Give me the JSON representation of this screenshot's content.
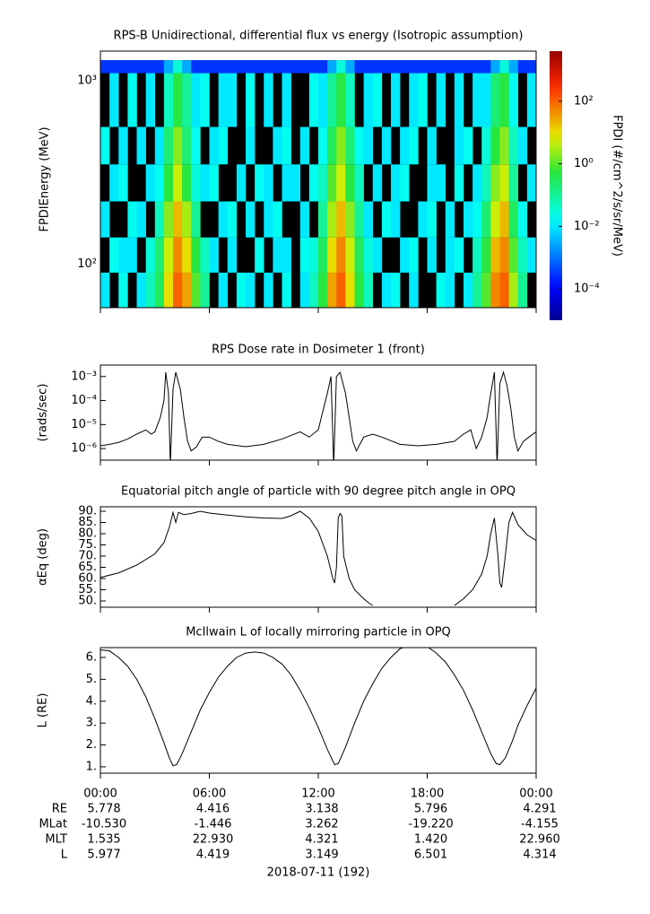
{
  "chart_data": [
    {
      "type": "heatmap",
      "title": "RPS-B  Unidirectional, differential flux vs energy (Isotropic assumption)",
      "ylabel": "FPDIEnergy (MeV)",
      "ylog": true,
      "ylim": [
        58,
        1450
      ],
      "yticks": [
        {
          "value": 100,
          "label": "10²"
        },
        {
          "value": 1000,
          "label": "10³"
        }
      ],
      "x_edges": [
        0,
        0.5,
        1,
        1.5,
        2,
        2.5,
        3,
        3.5,
        4,
        4.5,
        5,
        5.5,
        6,
        6.5,
        7,
        7.5,
        8,
        8.5,
        9,
        9.5,
        10,
        10.5,
        11,
        11.5,
        12,
        12.5,
        13,
        13.5,
        14,
        14.5,
        15,
        15.5,
        16,
        16.5,
        17,
        17.5,
        18,
        18.5,
        19,
        19.5,
        20,
        20.5,
        21,
        21.5,
        22,
        22.5,
        23,
        23.5,
        24
      ],
      "y_edges": [
        58,
        90,
        140,
        220,
        350,
        560,
        1100,
        1294
      ],
      "z": [
        [
          0.01,
          null,
          0.02,
          null,
          0.01,
          0.05,
          0.3,
          10,
          100,
          30,
          1,
          0.1,
          null,
          0.01,
          null,
          0.02,
          0.01,
          null,
          0.01,
          null,
          0.02,
          null,
          0.01,
          0.05,
          0.5,
          30,
          100,
          10,
          0.5,
          0.05,
          null,
          0.01,
          0.02,
          null,
          0.01,
          null,
          null,
          0.02,
          0.01,
          null,
          0.01,
          0.1,
          1,
          50,
          100,
          3,
          0.1,
          null
        ],
        [
          null,
          0.02,
          0.01,
          0.01,
          null,
          0.03,
          0.2,
          5,
          50,
          10,
          0.5,
          0.05,
          0.01,
          null,
          0.01,
          null,
          null,
          0.02,
          null,
          0.01,
          0.01,
          null,
          0.02,
          0.03,
          0.3,
          10,
          50,
          5,
          0.3,
          0.03,
          0.01,
          null,
          null,
          0.01,
          0.02,
          null,
          0.01,
          null,
          0.01,
          0.02,
          null,
          0.05,
          0.5,
          20,
          50,
          1,
          0.05,
          0.01
        ],
        [
          0.01,
          null,
          null,
          0.02,
          0.01,
          null,
          0.05,
          2,
          20,
          3,
          0.1,
          null,
          null,
          0.01,
          0.02,
          null,
          0.01,
          null,
          0.01,
          0.02,
          null,
          null,
          0.01,
          null,
          0.1,
          3,
          20,
          2,
          0.1,
          0.01,
          null,
          0.02,
          0.01,
          null,
          null,
          0.01,
          0.02,
          null,
          0.01,
          null,
          0.01,
          0.02,
          0.2,
          5,
          20,
          0.3,
          0.02,
          null
        ],
        [
          null,
          0.01,
          0.02,
          null,
          null,
          0.01,
          0.02,
          0.5,
          5,
          0.5,
          0.03,
          0.01,
          0.02,
          null,
          null,
          0.01,
          null,
          0.02,
          0.01,
          null,
          0.01,
          0.01,
          null,
          0.02,
          0.05,
          1,
          5,
          0.5,
          0.05,
          null,
          0.01,
          null,
          0.01,
          0.02,
          null,
          null,
          0.01,
          0.01,
          null,
          0.02,
          null,
          0.01,
          0.05,
          2,
          5,
          0.1,
          null,
          0.01
        ],
        [
          0.02,
          null,
          0.01,
          null,
          0.01,
          null,
          0.01,
          0.2,
          2,
          0.2,
          0.02,
          null,
          0.01,
          0.02,
          null,
          null,
          0.01,
          null,
          null,
          0.01,
          0.02,
          null,
          0.01,
          null,
          0.02,
          0.3,
          2,
          0.2,
          0.02,
          0.01,
          null,
          0.01,
          null,
          0.01,
          0.02,
          null,
          0.01,
          null,
          null,
          0.01,
          0.02,
          null,
          0.03,
          0.5,
          2,
          0.05,
          0.01,
          null
        ],
        [
          null,
          0.01,
          null,
          0.02,
          null,
          0.01,
          null,
          0.05,
          0.5,
          0.1,
          0.01,
          0.02,
          null,
          0.01,
          0.01,
          null,
          0.02,
          null,
          0.01,
          null,
          0.01,
          null,
          null,
          0.02,
          0.01,
          0.1,
          0.5,
          0.05,
          null,
          0.01,
          0.02,
          null,
          0.01,
          null,
          0.01,
          0.02,
          null,
          0.01,
          null,
          0.01,
          null,
          0.01,
          0.01,
          0.2,
          0.5,
          0.02,
          null,
          0.01
        ],
        [
          0.0003,
          0.0003,
          0.0003,
          0.0003,
          0.0003,
          0.0003,
          0.0003,
          0.003,
          0.03,
          0.003,
          0.0003,
          0.0003,
          0.0003,
          0.0003,
          0.0003,
          0.0003,
          0.0003,
          0.0003,
          0.0003,
          0.0003,
          0.0003,
          0.0003,
          0.0003,
          0.0003,
          0.0003,
          0.003,
          0.03,
          0.003,
          0.0003,
          0.0003,
          0.0003,
          0.0003,
          0.0003,
          0.0003,
          0.0003,
          0.0003,
          0.0003,
          0.0003,
          0.0003,
          0.0003,
          0.0003,
          0.0003,
          0.0003,
          0.003,
          0.03,
          0.003,
          0.0003,
          0.0003
        ]
      ],
      "colorbar": {
        "label": "FPDI (#/cm^2/s/sr/MeV)",
        "log": true,
        "clim": [
          1e-05,
          4000
        ],
        "ticks": [
          {
            "value": 0.0001,
            "label": "10⁻⁴"
          },
          {
            "value": 0.01,
            "label": "10⁻²"
          },
          {
            "value": 1,
            "label": "10⁰"
          },
          {
            "value": 100,
            "label": "10²"
          }
        ]
      }
    },
    {
      "type": "line",
      "title": "RPS  Dose rate in Dosimeter 1 (front)",
      "ylabel": "(rads/sec)",
      "ylog": true,
      "ylim": [
        3.3e-07,
        0.003
      ],
      "color": "#000000",
      "yticks": [
        {
          "value": 1e-06,
          "label": "10⁻⁶"
        },
        {
          "value": 1e-05,
          "label": "10⁻⁵"
        },
        {
          "value": 0.0001,
          "label": "10⁻⁴"
        },
        {
          "value": 0.001,
          "label": "10⁻³"
        }
      ],
      "x": [
        0,
        0.5,
        1,
        1.5,
        2,
        2.5,
        2.8,
        3,
        3.3,
        3.5,
        3.6,
        3.75,
        3.85,
        4,
        4.15,
        4.4,
        4.6,
        4.8,
        5,
        5.3,
        5.6,
        6,
        6.5,
        7,
        8,
        9,
        10,
        11,
        11.5,
        12,
        12.3,
        12.5,
        12.7,
        12.85,
        13,
        13.2,
        13.5,
        13.7,
        13.9,
        14.1,
        14.5,
        15,
        15.5,
        16.5,
        17.5,
        18.5,
        19.5,
        20,
        20.4,
        20.7,
        21,
        21.3,
        21.5,
        21.7,
        21.85,
        22,
        22.2,
        22.4,
        22.6,
        22.8,
        23,
        23.3,
        23.6,
        24
      ],
      "values": [
        1.3e-06,
        1.5e-06,
        1.8e-06,
        2.5e-06,
        4e-06,
        6e-06,
        4e-06,
        5e-06,
        2e-05,
        0.0001,
        0.0015,
        0.0002,
        2e-07,
        0.0003,
        0.0015,
        0.0003,
        2e-05,
        2e-06,
        8e-07,
        1.2e-06,
        3e-06,
        3e-06,
        2e-06,
        1.5e-06,
        1.2e-06,
        1.5e-06,
        2.5e-06,
        5e-06,
        3e-06,
        6e-06,
        5e-05,
        0.0002,
        0.001,
        2e-07,
        0.001,
        0.0015,
        0.0002,
        2e-05,
        2e-06,
        8e-07,
        3e-06,
        4e-06,
        3e-06,
        1.5e-06,
        1.3e-06,
        1.5e-06,
        2e-06,
        4e-06,
        6e-06,
        1e-06,
        3e-06,
        2e-05,
        0.0002,
        0.0015,
        2e-07,
        0.0005,
        0.0015,
        0.0004,
        5e-05,
        3e-06,
        8e-07,
        2e-06,
        3e-06,
        5e-06
      ]
    },
    {
      "type": "line",
      "title": "Equatorial pitch angle of particle with 90 degree pitch angle in OPQ",
      "ylabel": "αEq (deg)",
      "ylog": false,
      "ylim": [
        47.2,
        92
      ],
      "color": "#000000",
      "yticks": [
        {
          "value": 50,
          "label": "50."
        },
        {
          "value": 55,
          "label": "55."
        },
        {
          "value": 60,
          "label": "60."
        },
        {
          "value": 65,
          "label": "65."
        },
        {
          "value": 70,
          "label": "70."
        },
        {
          "value": 75,
          "label": "75."
        },
        {
          "value": 80,
          "label": "80."
        },
        {
          "value": 85,
          "label": "85."
        },
        {
          "value": 90,
          "label": "90."
        }
      ],
      "x": [
        0,
        1,
        2,
        3,
        3.5,
        3.8,
        4,
        4.15,
        4.3,
        4.6,
        5,
        5.5,
        6,
        7,
        8,
        9,
        10,
        10.5,
        11,
        11.5,
        12,
        12.5,
        12.8,
        12.9,
        13,
        13.1,
        13.2,
        13.3,
        13.4,
        13.7,
        14,
        14.5,
        14.8,
        15,
        17,
        19.5,
        20,
        20.5,
        21,
        21.3,
        21.5,
        21.7,
        21.9,
        22,
        22.1,
        22.3,
        22.5,
        22.7,
        23,
        23.5,
        24
      ],
      "values": [
        60.5,
        62.5,
        66,
        71,
        76,
        83,
        89.5,
        85,
        89.5,
        88.5,
        89,
        90,
        89.2,
        88.3,
        87.5,
        87,
        86.8,
        88,
        90,
        87,
        81,
        70,
        60,
        58,
        65,
        87,
        89,
        88,
        70,
        60,
        55,
        51,
        49,
        48,
        null,
        48,
        51,
        55,
        62,
        70,
        80,
        87,
        70,
        58,
        56,
        70,
        85,
        89.5,
        84,
        79.5,
        77
      ]
    },
    {
      "type": "line",
      "title": "McIlwain L of locally mirroring particle in OPQ",
      "ylabel": "L (RE)",
      "ylog": false,
      "ylim": [
        0.71,
        6.45
      ],
      "color": "#000000",
      "yticks": [
        {
          "value": 1,
          "label": "1."
        },
        {
          "value": 2,
          "label": "2."
        },
        {
          "value": 3,
          "label": "3."
        },
        {
          "value": 4,
          "label": "4."
        },
        {
          "value": 5,
          "label": "5."
        },
        {
          "value": 6,
          "label": "6."
        }
      ],
      "x": [
        0,
        0.5,
        1,
        1.5,
        2,
        2.5,
        3,
        3.5,
        3.8,
        4,
        4.2,
        4.5,
        5,
        5.5,
        6,
        6.5,
        7,
        7.5,
        8,
        8.5,
        9,
        9.5,
        10,
        10.5,
        11,
        11.5,
        12,
        12.5,
        12.9,
        13.1,
        13.5,
        14,
        14.5,
        15,
        15.5,
        16,
        16.5,
        17,
        17.5,
        18,
        18.5,
        19,
        19.5,
        20,
        20.5,
        21,
        21.5,
        21.8,
        22,
        22.3,
        22.7,
        23,
        23.5,
        24
      ],
      "values": [
        6.35,
        6.3,
        6.0,
        5.6,
        5.0,
        4.2,
        3.2,
        2.1,
        1.4,
        1.05,
        1.1,
        1.6,
        2.6,
        3.6,
        4.4,
        5.1,
        5.6,
        6.0,
        6.2,
        6.25,
        6.2,
        6.0,
        5.7,
        5.2,
        4.5,
        3.7,
        2.8,
        1.8,
        1.1,
        1.15,
        1.9,
        3.0,
        4.0,
        4.8,
        5.5,
        6.0,
        6.4,
        6.55,
        6.6,
        6.5,
        6.2,
        5.8,
        5.2,
        4.5,
        3.6,
        2.6,
        1.6,
        1.15,
        1.1,
        1.4,
        2.2,
        2.9,
        3.8,
        4.6
      ]
    }
  ],
  "time_axis": {
    "xlim": [
      0,
      24
    ],
    "xticks": [
      {
        "value": 0,
        "label": "00:00"
      },
      {
        "value": 6,
        "label": "06:00"
      },
      {
        "value": 12,
        "label": "12:00"
      },
      {
        "value": 18,
        "label": "18:00"
      },
      {
        "value": 24,
        "label": "00:00"
      }
    ],
    "xlabel": "2018-07-11 (192)"
  },
  "ephemeris": {
    "rows": [
      {
        "label": "RE",
        "values": [
          "5.778",
          "4.416",
          "3.138",
          "5.796",
          "4.291"
        ]
      },
      {
        "label": "MLat",
        "values": [
          "-10.530",
          "-1.446",
          "3.262",
          "-19.220",
          "-4.155"
        ]
      },
      {
        "label": "MLT",
        "values": [
          "1.535",
          "22.930",
          "4.321",
          "1.420",
          "22.960"
        ]
      },
      {
        "label": "L",
        "values": [
          "5.977",
          "4.419",
          "3.149",
          "6.501",
          "4.314"
        ]
      }
    ]
  }
}
